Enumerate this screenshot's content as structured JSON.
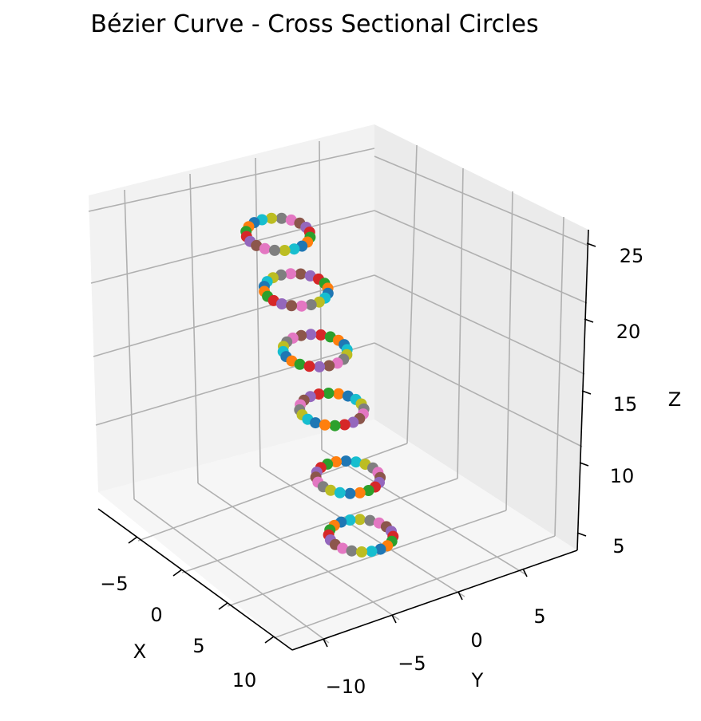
{
  "chart_data": {
    "type": "scatter",
    "projection": "3d",
    "title": "Bézier Curve - Cross Sectional Circles",
    "xlabel": "X",
    "ylabel": "Y",
    "zlabel": "Z",
    "grid": true,
    "x_ticks": [
      "−5",
      "0",
      "5",
      "10"
    ],
    "y_ticks": [
      "−10",
      "−5",
      "0",
      "5"
    ],
    "z_ticks": [
      "5",
      "10",
      "15",
      "20",
      "25"
    ],
    "xlim": [
      -9,
      12
    ],
    "ylim": [
      -12,
      9
    ],
    "zlim": [
      4.5,
      26.5
    ],
    "palette": [
      "#1f77b4",
      "#ff7f0e",
      "#2ca02c",
      "#d62728",
      "#9467bd",
      "#8c564b",
      "#e377c2",
      "#7f7f7f",
      "#bcbd22",
      "#17becf"
    ],
    "circles": [
      {
        "center_x": 2.0,
        "center_y": -1.0,
        "center_z": 6.2,
        "radius": 2.0,
        "points": 20
      },
      {
        "center_x": 1.5,
        "center_y": -1.8,
        "center_z": 10.3,
        "radius": 2.0,
        "points": 20
      },
      {
        "center_x": 0.5,
        "center_y": -2.5,
        "center_z": 14.8,
        "radius": 2.0,
        "points": 20
      },
      {
        "center_x": -1.0,
        "center_y": -2.8,
        "center_z": 18.3,
        "radius": 2.0,
        "points": 20
      },
      {
        "center_x": -2.5,
        "center_y": -3.3,
        "center_z": 22.0,
        "radius": 2.0,
        "points": 20
      },
      {
        "center_x": -4.0,
        "center_y": -3.7,
        "center_z": 25.3,
        "radius": 2.0,
        "points": 20
      }
    ]
  }
}
